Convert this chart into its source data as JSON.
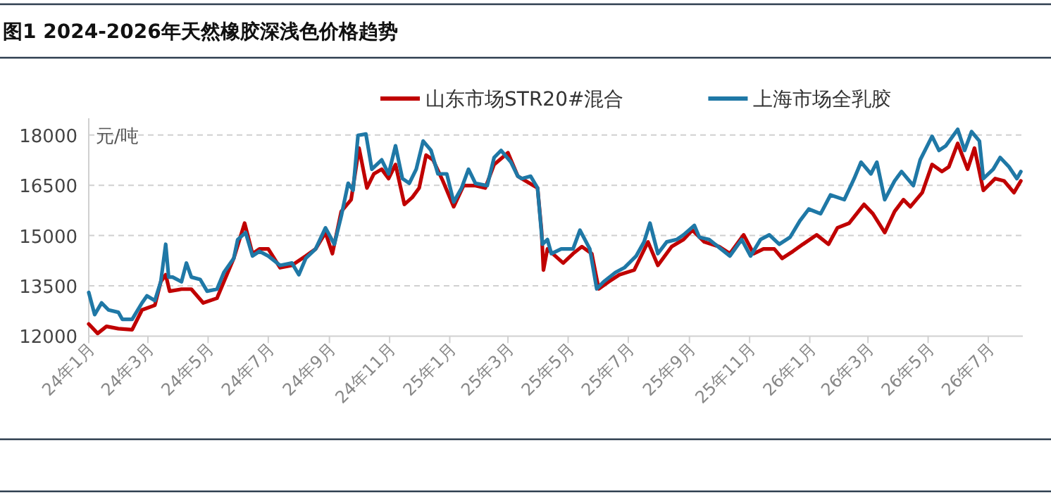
{
  "chart_data": {
    "type": "line",
    "title": "图1  2024-2026年天然橡胶深浅色价格趋势",
    "ylabel": "元/吨",
    "xlim": [
      "2024-01-01",
      "2026-08-05"
    ],
    "xticks": [
      {
        "value": "2024-01-01",
        "label": "24年1月"
      },
      {
        "value": "2024-03-01",
        "label": "24年3月"
      },
      {
        "value": "2024-05-01",
        "label": "24年5月"
      },
      {
        "value": "2024-07-01",
        "label": "24年7月"
      },
      {
        "value": "2024-09-01",
        "label": "24年9月"
      },
      {
        "value": "2024-11-01",
        "label": "24年11月"
      },
      {
        "value": "2025-01-01",
        "label": "25年1月"
      },
      {
        "value": "2025-03-01",
        "label": "25年3月"
      },
      {
        "value": "2025-05-01",
        "label": "25年5月"
      },
      {
        "value": "2025-07-01",
        "label": "25年7月"
      },
      {
        "value": "2025-09-01",
        "label": "25年9月"
      },
      {
        "value": "2025-11-01",
        "label": "25年11月"
      },
      {
        "value": "2026-01-01",
        "label": "26年1月"
      },
      {
        "value": "2026-03-01",
        "label": "26年3月"
      },
      {
        "value": "2026-05-01",
        "label": "26年5月"
      },
      {
        "value": "2026-07-01",
        "label": "26年7月"
      }
    ],
    "ylim": [
      12000,
      18500
    ],
    "yticks": [
      12000,
      13500,
      15000,
      16500,
      18000
    ],
    "grid": "y",
    "legend": "top",
    "line_style": "solid",
    "marker": "none",
    "series": [
      {
        "name": "山东市场STR20#混合",
        "color": "#c00000",
        "x": [
          "2024-01-01",
          "2024-01-10",
          "2024-01-19",
          "2024-01-31",
          "2024-02-14",
          "2024-02-24",
          "2024-03-08",
          "2024-03-14",
          "2024-03-19",
          "2024-03-23",
          "2024-04-04",
          "2024-04-14",
          "2024-04-26",
          "2024-05-10",
          "2024-05-17",
          "2024-05-27",
          "2024-06-07",
          "2024-06-15",
          "2024-06-22",
          "2024-07-01",
          "2024-07-13",
          "2024-07-25",
          "2024-08-08",
          "2024-08-18",
          "2024-08-28",
          "2024-09-04",
          "2024-09-13",
          "2024-09-23",
          "2024-10-01",
          "2024-10-09",
          "2024-10-16",
          "2024-10-24",
          "2024-10-31",
          "2024-11-07",
          "2024-11-16",
          "2024-11-24",
          "2024-12-01",
          "2024-12-08",
          "2024-12-15",
          "2024-12-25",
          "2025-01-05",
          "2025-01-15",
          "2025-01-27",
          "2025-02-06",
          "2025-02-15",
          "2025-03-01",
          "2025-03-11",
          "2025-03-15",
          "2025-03-31",
          "2025-04-04",
          "2025-04-06",
          "2025-04-10",
          "2025-04-26",
          "2025-05-06",
          "2025-05-15",
          "2025-05-25",
          "2025-06-01",
          "2025-06-11",
          "2025-06-22",
          "2025-07-07",
          "2025-07-21",
          "2025-07-31",
          "2025-08-14",
          "2025-08-26",
          "2025-09-04",
          "2025-09-16",
          "2025-10-01",
          "2025-10-12",
          "2025-10-26",
          "2025-11-05",
          "2025-11-15",
          "2025-11-26",
          "2025-12-04",
          "2025-12-15",
          "2025-12-25",
          "2026-01-08",
          "2026-01-20",
          "2026-01-29",
          "2026-02-10",
          "2026-02-25",
          "2026-03-06",
          "2026-03-18",
          "2026-03-28",
          "2026-04-06",
          "2026-04-13",
          "2026-04-25",
          "2026-05-05",
          "2026-05-15",
          "2026-05-22",
          "2026-05-31",
          "2026-06-10",
          "2026-06-17",
          "2026-06-26",
          "2026-07-08",
          "2026-07-17",
          "2026-07-27",
          "2026-08-03"
        ],
        "values": [
          12360,
          12080,
          12290,
          12220,
          12190,
          12780,
          12920,
          13620,
          13830,
          13340,
          13400,
          13400,
          12990,
          13130,
          13620,
          14320,
          15370,
          14460,
          14600,
          14600,
          14040,
          14110,
          14390,
          14600,
          15090,
          14460,
          15720,
          16070,
          17610,
          16420,
          16840,
          16980,
          16700,
          17120,
          15930,
          16140,
          16420,
          17400,
          17260,
          16630,
          15860,
          16490,
          16490,
          16420,
          17120,
          17470,
          16770,
          16700,
          16420,
          15160,
          13970,
          14600,
          14180,
          14460,
          14670,
          14460,
          13410,
          13620,
          13830,
          13970,
          14810,
          14110,
          14670,
          14880,
          15160,
          14810,
          14670,
          14460,
          15020,
          14460,
          14600,
          14600,
          14320,
          14530,
          14740,
          15020,
          14740,
          15230,
          15370,
          15930,
          15650,
          15090,
          15720,
          16070,
          15860,
          16280,
          17120,
          16910,
          17050,
          17750,
          16980,
          17610,
          16350,
          16700,
          16630,
          16280,
          16630
        ]
      },
      {
        "name": "上海市场全乳胶",
        "color": "#1f78a6",
        "x": [
          "2024-01-01",
          "2024-01-07",
          "2024-01-14",
          "2024-01-21",
          "2024-01-31",
          "2024-02-04",
          "2024-02-14",
          "2024-02-24",
          "2024-02-29",
          "2024-03-08",
          "2024-03-14",
          "2024-03-19",
          "2024-03-22",
          "2024-03-26",
          "2024-04-04",
          "2024-04-09",
          "2024-04-14",
          "2024-04-23",
          "2024-04-30",
          "2024-05-10",
          "2024-05-17",
          "2024-05-27",
          "2024-05-31",
          "2024-06-08",
          "2024-06-15",
          "2024-06-22",
          "2024-07-01",
          "2024-07-13",
          "2024-07-25",
          "2024-08-01",
          "2024-08-08",
          "2024-08-18",
          "2024-08-28",
          "2024-09-06",
          "2024-09-13",
          "2024-09-20",
          "2024-09-25",
          "2024-09-30",
          "2024-10-08",
          "2024-10-14",
          "2024-10-24",
          "2024-10-31",
          "2024-11-07",
          "2024-11-14",
          "2024-11-21",
          "2024-11-28",
          "2024-12-05",
          "2024-12-13",
          "2024-12-20",
          "2024-12-29",
          "2025-01-05",
          "2025-01-13",
          "2025-01-20",
          "2025-01-27",
          "2025-02-08",
          "2025-02-15",
          "2025-02-22",
          "2025-03-04",
          "2025-03-11",
          "2025-03-15",
          "2025-03-24",
          "2025-03-31",
          "2025-04-05",
          "2025-04-10",
          "2025-04-14",
          "2025-04-24",
          "2025-05-06",
          "2025-05-13",
          "2025-05-23",
          "2025-05-30",
          "2025-06-06",
          "2025-06-18",
          "2025-06-27",
          "2025-07-09",
          "2025-07-17",
          "2025-07-23",
          "2025-07-31",
          "2025-08-09",
          "2025-08-19",
          "2025-08-26",
          "2025-09-06",
          "2025-09-11",
          "2025-09-21",
          "2025-10-03",
          "2025-10-12",
          "2025-10-24",
          "2025-11-02",
          "2025-11-12",
          "2025-11-21",
          "2025-12-01",
          "2025-12-12",
          "2025-12-22",
          "2025-12-31",
          "2026-01-12",
          "2026-01-22",
          "2026-02-05",
          "2026-02-15",
          "2026-02-22",
          "2026-03-04",
          "2026-03-10",
          "2026-03-18",
          "2026-03-28",
          "2026-04-04",
          "2026-04-16",
          "2026-04-23",
          "2026-05-05",
          "2026-05-12",
          "2026-05-19",
          "2026-05-31",
          "2026-06-07",
          "2026-06-14",
          "2026-06-22",
          "2026-06-26",
          "2026-07-06",
          "2026-07-13",
          "2026-07-22",
          "2026-07-30",
          "2026-08-03"
        ],
        "values": [
          13300,
          12640,
          12990,
          12780,
          12710,
          12500,
          12500,
          12990,
          13200,
          13060,
          13620,
          14740,
          13760,
          13760,
          13620,
          14180,
          13760,
          13690,
          13340,
          13400,
          13900,
          14320,
          14880,
          15090,
          14390,
          14530,
          14390,
          14110,
          14180,
          13830,
          14320,
          14600,
          15230,
          14740,
          15580,
          16560,
          16350,
          17990,
          18030,
          16980,
          17260,
          16840,
          17680,
          16700,
          16560,
          16980,
          17820,
          17540,
          16840,
          16840,
          16000,
          16420,
          16980,
          16560,
          16490,
          17330,
          17540,
          17190,
          16770,
          16700,
          16770,
          16420,
          14740,
          14880,
          14460,
          14600,
          14600,
          15160,
          14600,
          13410,
          13620,
          13900,
          14040,
          14390,
          14810,
          15370,
          14460,
          14810,
          14880,
          15020,
          15300,
          14950,
          14880,
          14600,
          14390,
          14880,
          14390,
          14880,
          15020,
          14740,
          14950,
          15440,
          15790,
          15650,
          16210,
          16070,
          16700,
          17190,
          16840,
          17190,
          16070,
          16630,
          16910,
          16490,
          17260,
          17960,
          17540,
          17680,
          18170,
          17540,
          18100,
          17820,
          16700,
          16980,
          17330,
          17050,
          16700,
          16910
        ]
      }
    ]
  }
}
